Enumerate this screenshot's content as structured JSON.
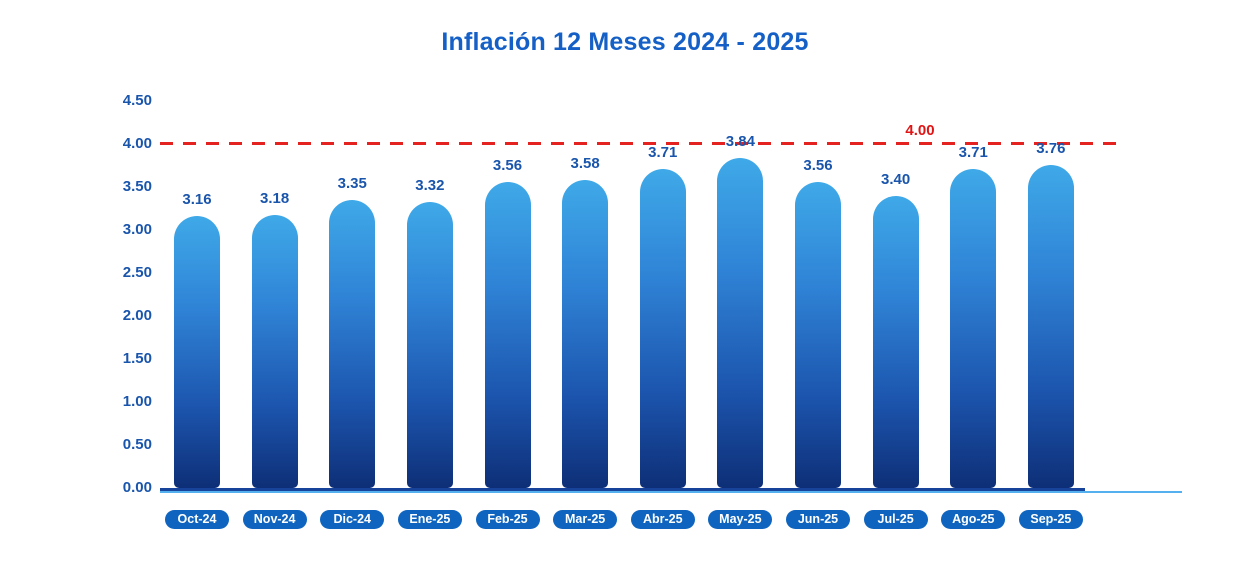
{
  "chart_data": {
    "type": "bar",
    "title": "Inflación 12 Meses 2024 - 2025",
    "categories": [
      "Oct-24",
      "Nov-24",
      "Dic-24",
      "Ene-25",
      "Feb-25",
      "Mar-25",
      "Abr-25",
      "May-25",
      "Jun-25",
      "Jul-25",
      "Ago-25",
      "Sep-25"
    ],
    "values": [
      3.16,
      3.18,
      3.35,
      3.32,
      3.56,
      3.58,
      3.71,
      3.84,
      3.56,
      3.4,
      3.71,
      3.76
    ],
    "data_labels": [
      "3.16",
      "3.18",
      "3.35",
      "3.32",
      "3.56",
      "3.58",
      "3.71",
      "3.84",
      "3.56",
      "3.40",
      "3.71",
      "3.76"
    ],
    "xlabel": "",
    "ylabel": "",
    "ylim": [
      0,
      4.5
    ],
    "ytick_step": 0.5,
    "yticks": [
      "4.50",
      "4.00",
      "3.50",
      "3.00",
      "2.50",
      "2.00",
      "1.50",
      "1.00",
      "0.50",
      "0.00"
    ],
    "grid": false,
    "legend": "none",
    "reference_line": {
      "value": 4.0,
      "label": "4.00",
      "style": "dashed"
    }
  },
  "colors": {
    "title_text": "#1560C6",
    "axis_text": "#1A55AC",
    "data_label_text": "#1A55AC",
    "bar_gradient_top": "#3FA9E8",
    "bar_gradient_mid": "#2F83D6",
    "bar_gradient_bottom": "#0E2F77",
    "category_pill_bg": "#0E64BE",
    "category_pill_text": "#FFFFFF",
    "reference_line": "#E42320",
    "reference_label_text": "#E01414",
    "x_axis_line": "#17449A",
    "baseline_accent_line": "#55B0EF"
  }
}
